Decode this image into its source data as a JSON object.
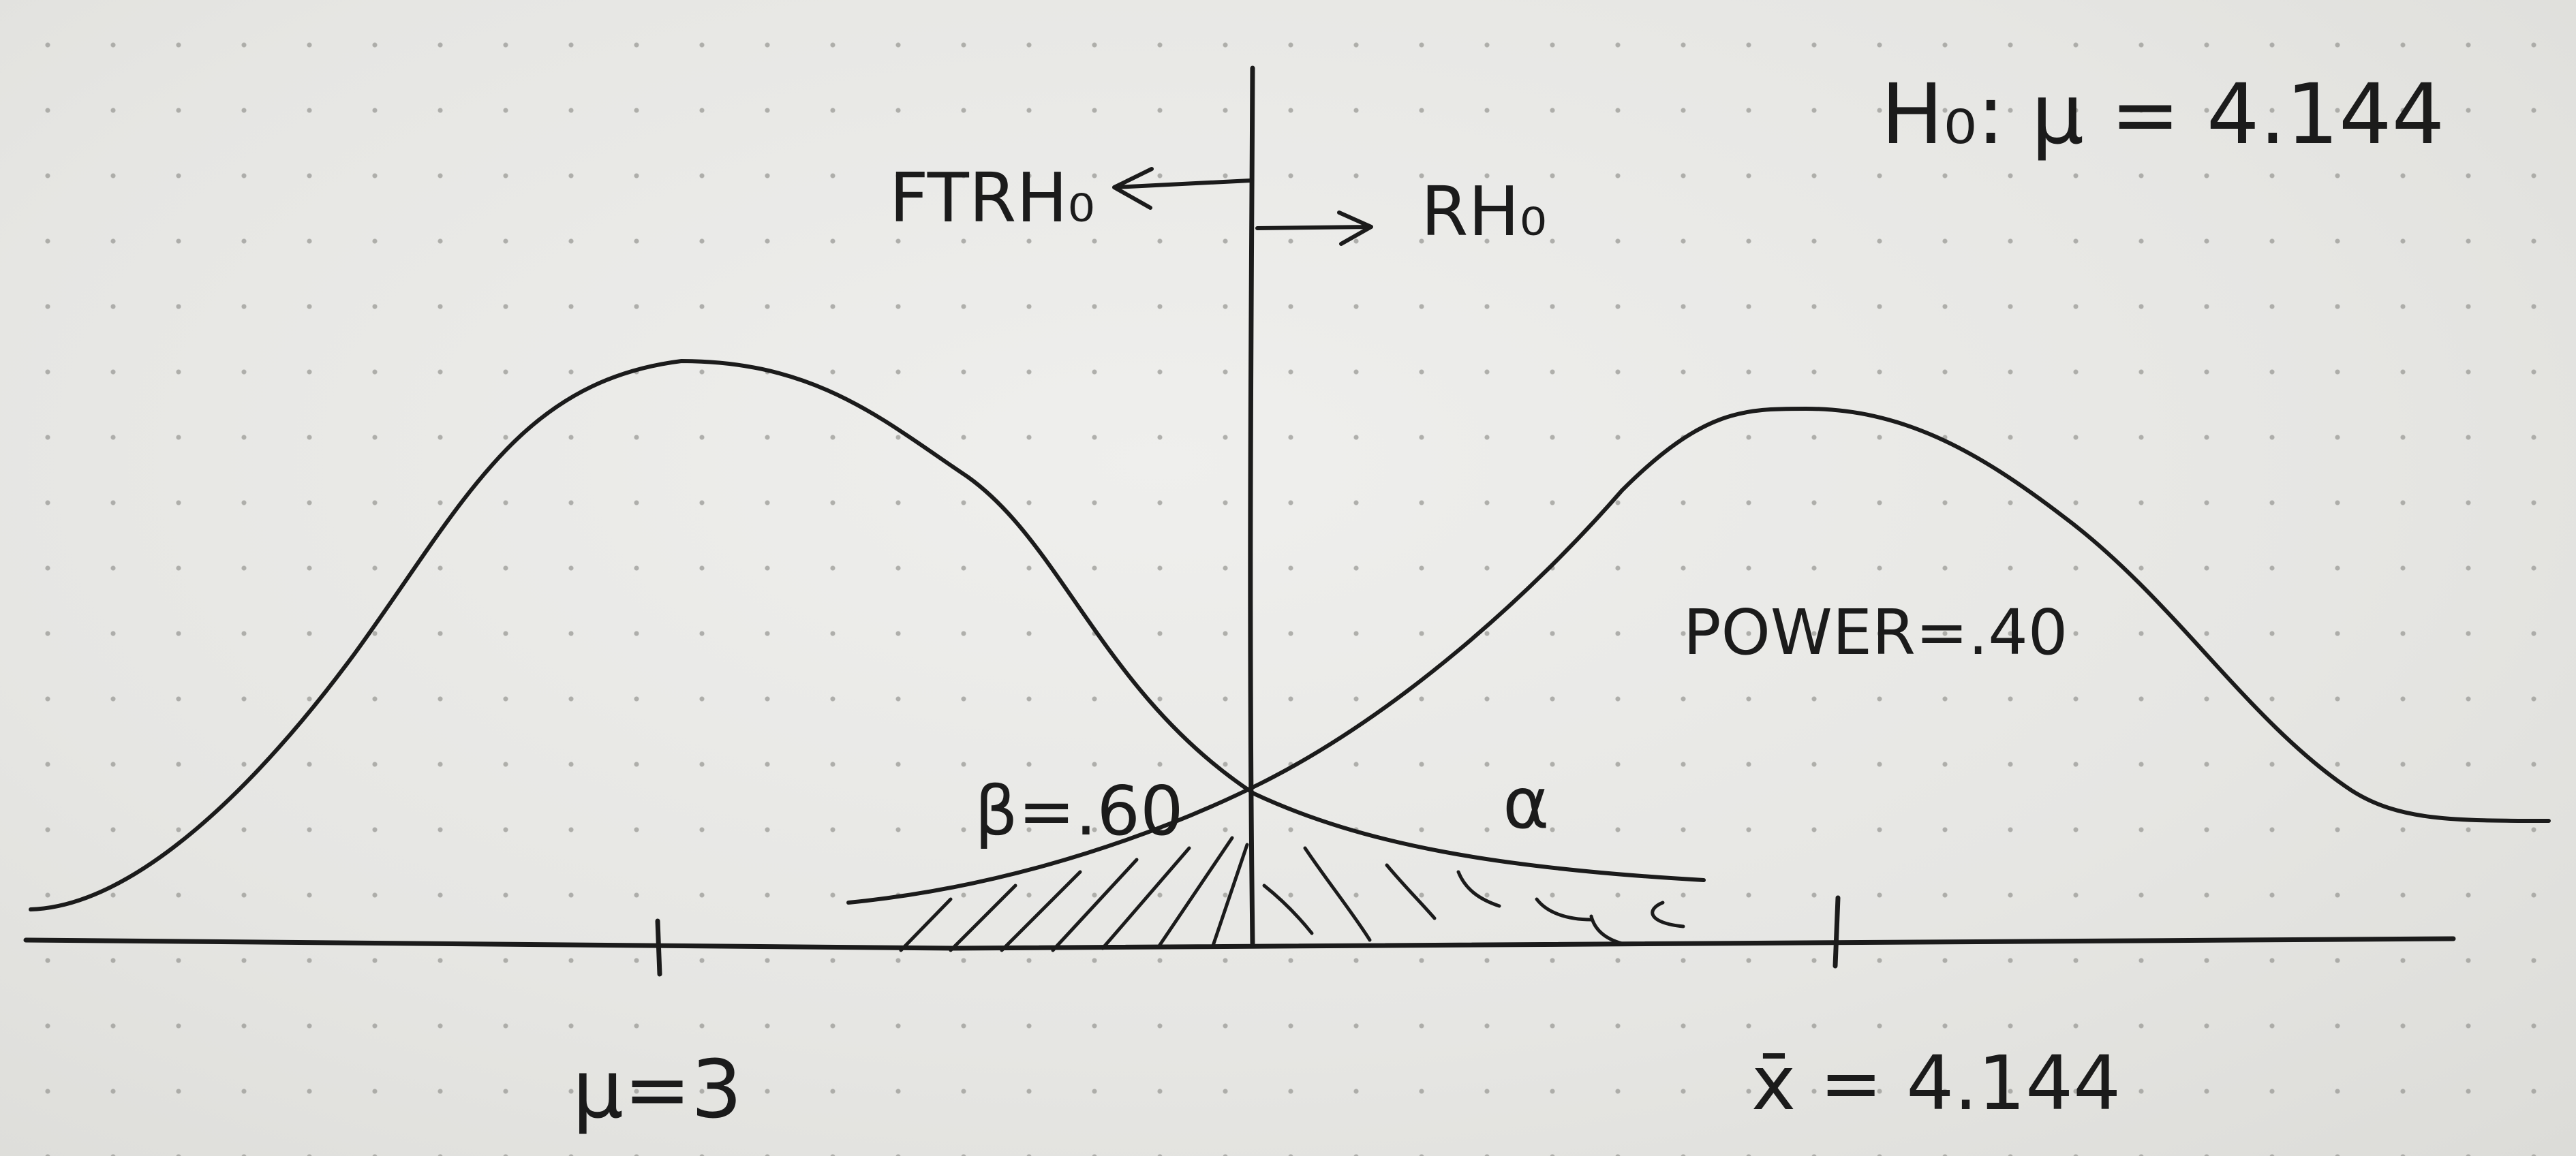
{
  "hypothesis": "H₀: μ = 4.144",
  "fail_to_reject_label": "FTRH₀",
  "reject_label": "RH₀",
  "power_label": "POWER=.40",
  "beta_label": "β=.60",
  "alpha_label": "α",
  "mu_label": "μ=3",
  "xbar_label": "x̄ = 4.144"
}
